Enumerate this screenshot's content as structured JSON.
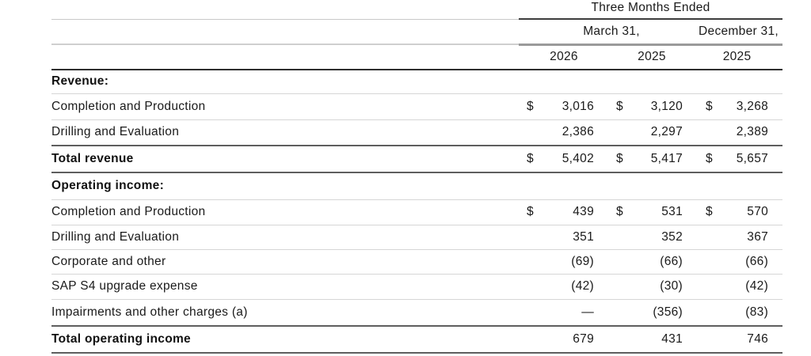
{
  "table": {
    "title": "Three Months Ended",
    "currency_symbol": "$",
    "column_groups": [
      {
        "label": "March 31,",
        "years": [
          "2026",
          "2025"
        ]
      },
      {
        "label": "December 31,",
        "years": [
          "2025"
        ]
      }
    ],
    "years": [
      "2026",
      "2025",
      "2025"
    ],
    "rows": [
      {
        "type": "section",
        "label": "Revenue:",
        "dollar": false,
        "values": [
          "",
          "",
          ""
        ]
      },
      {
        "type": "item",
        "label": "Completion and Production",
        "dollar": true,
        "values": [
          "3,016",
          "3,120",
          "3,268"
        ]
      },
      {
        "type": "item",
        "label": "Drilling and Evaluation",
        "dollar": false,
        "values": [
          "2,386",
          "2,297",
          "2,389"
        ]
      },
      {
        "type": "total",
        "label": "Total revenue",
        "dollar": true,
        "values": [
          "5,402",
          "5,417",
          "5,657"
        ]
      },
      {
        "type": "section",
        "label": "Operating income:",
        "dollar": false,
        "values": [
          "",
          "",
          ""
        ]
      },
      {
        "type": "item",
        "label": "Completion and Production",
        "dollar": true,
        "values": [
          "439",
          "531",
          "570"
        ]
      },
      {
        "type": "item",
        "label": "Drilling and Evaluation",
        "dollar": false,
        "values": [
          "351",
          "352",
          "367"
        ]
      },
      {
        "type": "item",
        "label": "Corporate and other",
        "dollar": false,
        "values": [
          "(69)",
          "(66)",
          "(66)"
        ]
      },
      {
        "type": "item",
        "label": "SAP S4 upgrade expense",
        "dollar": false,
        "values": [
          "(42)",
          "(30)",
          "(42)"
        ]
      },
      {
        "type": "item",
        "label": "Impairments and other charges (a)",
        "dollar": false,
        "values": [
          "—",
          "(356)",
          "(83)"
        ]
      },
      {
        "type": "total",
        "label": "Total operating income",
        "dollar": false,
        "values": [
          "679",
          "431",
          "746"
        ]
      }
    ]
  }
}
